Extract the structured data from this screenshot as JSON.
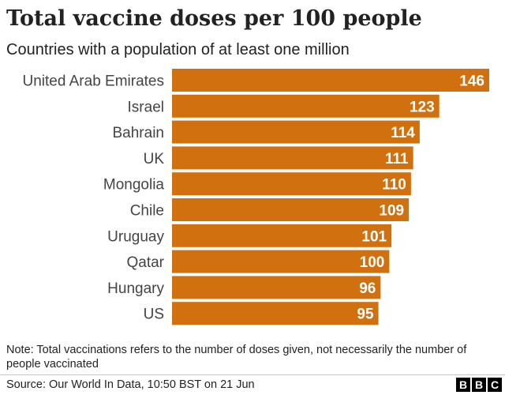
{
  "header": {
    "title": "Total vaccine doses per 100 people",
    "subtitle": "Countries with a population of at least one million"
  },
  "chart_data": {
    "type": "bar",
    "orientation": "horizontal",
    "title": "Total vaccine doses per 100 people",
    "subtitle": "Countries with a population of at least one million",
    "categories": [
      "United Arab Emirates",
      "Israel",
      "Bahrain",
      "UK",
      "Mongolia",
      "Chile",
      "Uruguay",
      "Qatar",
      "Hungary",
      "US"
    ],
    "values": [
      146,
      123,
      114,
      111,
      110,
      109,
      101,
      100,
      96,
      95
    ],
    "xlim": [
      0,
      146
    ],
    "bar_color": "#d1700e",
    "label_color": "#ffffff",
    "data_labels": "inside-end",
    "grid": false
  },
  "footer": {
    "note": "Note: Total vaccinations refers to the number of doses given, not necessarily the number of people vaccinated",
    "source": "Source: Our World In Data, 10:50 BST on 21 Jun",
    "logo_letters": [
      "B",
      "B",
      "C"
    ]
  }
}
